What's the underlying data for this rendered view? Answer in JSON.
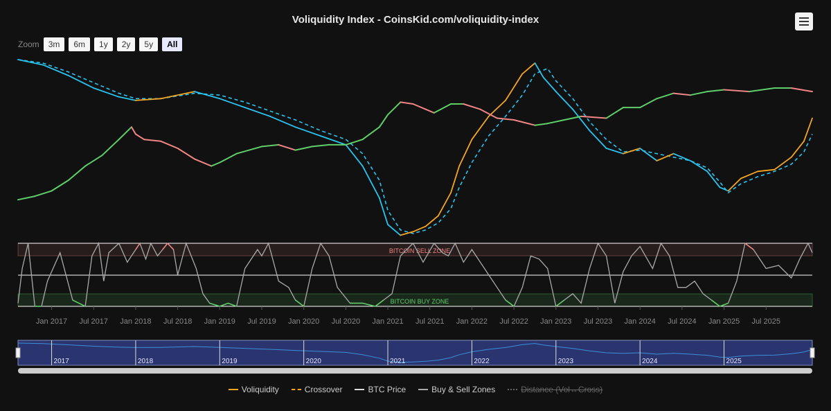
{
  "title": "Voliquidity Index - CoinsKid.com/voliquidity-index",
  "zoom": {
    "label": "Zoom",
    "buttons": [
      "3m",
      "6m",
      "1y",
      "2y",
      "5y",
      "All"
    ],
    "active": "All"
  },
  "colors": {
    "background": "#111111",
    "voliquidity": "#f5a623",
    "crossover": "#f5a623",
    "btc_up": "#5fcf6a",
    "btc_down": "#f28585",
    "blue": "#29c4f0",
    "zones": "#aaaaaa",
    "sell_zone": "#f28585",
    "buy_zone": "#5fcf6a",
    "navigator": "#2a3570"
  },
  "legend": [
    {
      "label": "Voliquidity",
      "style": "solid",
      "color": "#f5a623",
      "visible": true
    },
    {
      "label": "Crossover",
      "style": "dash",
      "color": "#f5a623",
      "visible": true
    },
    {
      "label": "BTC Price",
      "style": "solid",
      "color": "#dddddd",
      "visible": true
    },
    {
      "label": "Buy & Sell Zones",
      "style": "solid",
      "color": "#aaaaaa",
      "visible": true
    },
    {
      "label": "Distance (Vol↔Cross)",
      "style": "dot",
      "color": "#666666",
      "visible": false
    }
  ],
  "zone_labels": {
    "sell": "BITCOIN SELL ZONE",
    "buy": "BITCOIN BUY ZONE"
  },
  "navigator_labels": [
    "2017",
    "2018",
    "2019",
    "2020",
    "2021",
    "2022",
    "2023",
    "2024",
    "2025"
  ],
  "chart_data": {
    "type": "line",
    "x_start": 2016.6,
    "x_end": 2026.05,
    "x_tick_labels": [
      {
        "t": 2017.0,
        "label": "Jan 2017"
      },
      {
        "t": 2017.5,
        "label": "Jul 2017"
      },
      {
        "t": 2018.0,
        "label": "Jan 2018"
      },
      {
        "t": 2018.5,
        "label": "Jul 2018"
      },
      {
        "t": 2019.0,
        "label": "Jan 2019"
      },
      {
        "t": 2019.5,
        "label": "Jul 2019"
      },
      {
        "t": 2020.0,
        "label": "Jan 2020"
      },
      {
        "t": 2020.5,
        "label": "Jul 2020"
      },
      {
        "t": 2021.0,
        "label": "Jan 2021"
      },
      {
        "t": 2021.5,
        "label": "Jul 2021"
      },
      {
        "t": 2022.0,
        "label": "Jan 2022"
      },
      {
        "t": 2022.5,
        "label": "Jul 2022"
      },
      {
        "t": 2023.0,
        "label": "Jan 2023"
      },
      {
        "t": 2023.5,
        "label": "Jul 2023"
      },
      {
        "t": 2024.0,
        "label": "Jan 2024"
      },
      {
        "t": 2024.5,
        "label": "Jul 2024"
      },
      {
        "t": 2025.0,
        "label": "Jan 2025"
      },
      {
        "t": 2025.5,
        "label": "Jul 2025"
      }
    ],
    "upper_ylim": [
      0,
      100
    ],
    "series": [
      {
        "name": "Voliquidity",
        "t": [
          2016.6,
          2016.9,
          2017.2,
          2017.5,
          2017.8,
          2018.0,
          2018.3,
          2018.7,
          2019.0,
          2019.3,
          2019.6,
          2019.9,
          2020.2,
          2020.5,
          2020.7,
          2020.9,
          2021.0,
          2021.15,
          2021.3,
          2021.45,
          2021.6,
          2021.75,
          2021.85,
          2022.0,
          2022.2,
          2022.4,
          2022.6,
          2022.75,
          2022.85,
          2023.0,
          2023.2,
          2023.4,
          2023.6,
          2023.8,
          2024.0,
          2024.2,
          2024.4,
          2024.6,
          2024.8,
          2024.95,
          2025.05,
          2025.2,
          2025.4,
          2025.6,
          2025.8,
          2025.95,
          2026.05
        ],
        "values": [
          100,
          97,
          91,
          84,
          79,
          77,
          78,
          82,
          78,
          73,
          68,
          62,
          57,
          52,
          40,
          22,
          7,
          1,
          3,
          6,
          12,
          25,
          40,
          55,
          68,
          77,
          92,
          98,
          90,
          82,
          72,
          60,
          50,
          47,
          50,
          43,
          47,
          43,
          37,
          28,
          26,
          33,
          37,
          38,
          45,
          54,
          67
        ]
      },
      {
        "name": "Crossover",
        "t": [
          2016.6,
          2016.9,
          2017.2,
          2017.5,
          2017.8,
          2018.0,
          2018.3,
          2018.7,
          2019.0,
          2019.3,
          2019.6,
          2019.9,
          2020.2,
          2020.5,
          2020.7,
          2020.9,
          2021.0,
          2021.15,
          2021.3,
          2021.45,
          2021.6,
          2021.75,
          2021.85,
          2022.0,
          2022.2,
          2022.4,
          2022.6,
          2022.75,
          2022.9,
          2023.0,
          2023.2,
          2023.4,
          2023.6,
          2023.8,
          2024.0,
          2024.2,
          2024.4,
          2024.6,
          2024.8,
          2024.95,
          2025.05,
          2025.2,
          2025.4,
          2025.6,
          2025.8,
          2025.95,
          2026.05
        ],
        "values": [
          100,
          98,
          93,
          87,
          81,
          78,
          78,
          81,
          80,
          76,
          71,
          66,
          60,
          55,
          47,
          32,
          15,
          4,
          2,
          4,
          8,
          16,
          28,
          42,
          57,
          68,
          80,
          92,
          95,
          88,
          78,
          65,
          55,
          48,
          49,
          47,
          45,
          43,
          39,
          31,
          25,
          30,
          34,
          37,
          41,
          48,
          58
        ]
      },
      {
        "name": "BTC Price",
        "t": [
          2016.6,
          2016.8,
          2017.0,
          2017.2,
          2017.4,
          2017.6,
          2017.8,
          2017.95,
          2018.0,
          2018.1,
          2018.3,
          2018.5,
          2018.7,
          2018.9,
          2019.0,
          2019.2,
          2019.5,
          2019.7,
          2019.9,
          2020.1,
          2020.3,
          2020.5,
          2020.7,
          2020.9,
          2021.0,
          2021.15,
          2021.3,
          2021.45,
          2021.55,
          2021.75,
          2021.9,
          2022.1,
          2022.3,
          2022.5,
          2022.75,
          2022.9,
          2023.1,
          2023.3,
          2023.6,
          2023.8,
          2024.0,
          2024.2,
          2024.4,
          2024.6,
          2024.8,
          2025.0,
          2025.3,
          2025.6,
          2025.8,
          2026.05
        ],
        "values": [
          21,
          23,
          26,
          32,
          40,
          46,
          55,
          62,
          58,
          55,
          54,
          50,
          44,
          40,
          42,
          47,
          51,
          52,
          49,
          51,
          52,
          52,
          55,
          62,
          69,
          76,
          75,
          72,
          70,
          75,
          75,
          72,
          67,
          66,
          63,
          64,
          66,
          68,
          67,
          73,
          73,
          78,
          81,
          80,
          82,
          83,
          82,
          84,
          84,
          82
        ],
        "up_color": "#5fcf6a",
        "down_color": "#f28585"
      },
      {
        "name": "Buy & Sell Zones",
        "t": [
          2016.6,
          2016.65,
          2016.72,
          2016.8,
          2016.88,
          2016.95,
          2017.1,
          2017.25,
          2017.4,
          2017.48,
          2017.56,
          2017.62,
          2017.68,
          2017.8,
          2017.9,
          2018.0,
          2018.05,
          2018.12,
          2018.18,
          2018.26,
          2018.32,
          2018.38,
          2018.45,
          2018.5,
          2018.6,
          2018.72,
          2018.8,
          2018.88,
          2019.0,
          2019.1,
          2019.2,
          2019.3,
          2019.45,
          2019.5,
          2019.58,
          2019.7,
          2019.82,
          2019.9,
          2020.0,
          2020.1,
          2020.2,
          2020.3,
          2020.4,
          2020.55,
          2020.7,
          2020.85,
          2020.95,
          2021.05,
          2021.15,
          2021.3,
          2021.42,
          2021.55,
          2021.65,
          2021.72,
          2021.8,
          2021.9,
          2022.0,
          2022.15,
          2022.3,
          2022.4,
          2022.5,
          2022.6,
          2022.7,
          2022.8,
          2022.9,
          2023.0,
          2023.1,
          2023.2,
          2023.3,
          2023.4,
          2023.5,
          2023.6,
          2023.7,
          2023.8,
          2023.9,
          2024.0,
          2024.15,
          2024.25,
          2024.35,
          2024.45,
          2024.55,
          2024.65,
          2024.75,
          2024.85,
          2024.95,
          2025.05,
          2025.15,
          2025.25,
          2025.35,
          2025.5,
          2025.65,
          2025.8,
          2025.9,
          2026.0,
          2026.05
        ],
        "values": [
          5,
          60,
          100,
          0,
          0,
          40,
          85,
          10,
          0,
          80,
          100,
          40,
          85,
          100,
          70,
          90,
          100,
          75,
          100,
          80,
          90,
          100,
          90,
          50,
          100,
          60,
          20,
          5,
          0,
          5,
          0,
          60,
          90,
          80,
          100,
          40,
          30,
          10,
          0,
          60,
          100,
          80,
          30,
          5,
          5,
          0,
          10,
          20,
          80,
          100,
          70,
          100,
          85,
          80,
          100,
          70,
          90,
          60,
          30,
          10,
          0,
          30,
          80,
          75,
          60,
          0,
          10,
          20,
          5,
          60,
          100,
          80,
          5,
          55,
          80,
          95,
          60,
          100,
          80,
          30,
          30,
          40,
          20,
          10,
          0,
          5,
          40,
          100,
          90,
          60,
          65,
          45,
          75,
          100,
          85
        ],
        "ylim": [
          0,
          100
        ]
      }
    ]
  }
}
